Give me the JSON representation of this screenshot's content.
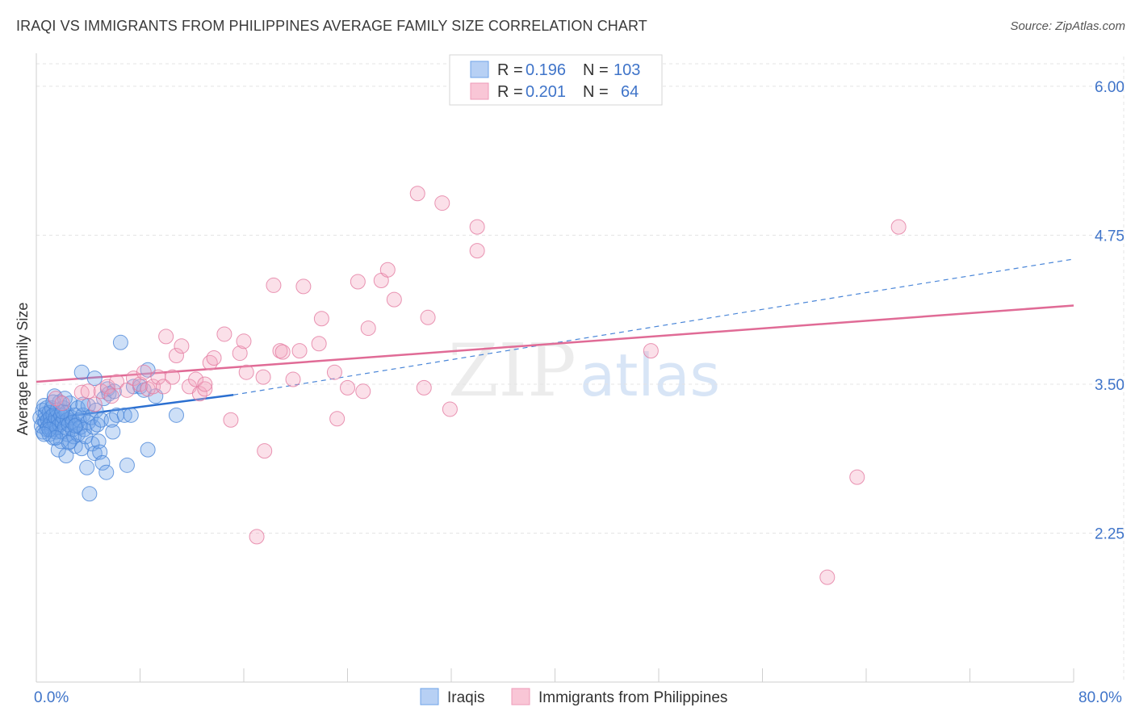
{
  "header": {
    "title": "IRAQI VS IMMIGRANTS FROM PHILIPPINES AVERAGE FAMILY SIZE CORRELATION CHART",
    "source": "Source: ZipAtlas.com"
  },
  "watermark": {
    "zip": "ZIP",
    "atlas": "atlas"
  },
  "chart_data": {
    "type": "scatter",
    "title": "IRAQI VS IMMIGRANTS FROM PHILIPPINES AVERAGE FAMILY SIZE CORRELATION CHART",
    "xlabel": "",
    "ylabel": "Average Family Size",
    "xlim": [
      0,
      80
    ],
    "ylim": [
      1.0,
      6.25
    ],
    "x_tick_labels": {
      "min": "0.0%",
      "max": "80.0%"
    },
    "y_ticks": [
      2.25,
      3.5,
      4.75,
      6.0
    ],
    "y_tick_labels": [
      "2.25",
      "3.50",
      "4.75",
      "6.00"
    ],
    "grid": true,
    "legend_position": "top-center",
    "series": [
      {
        "name": "Iraqis",
        "color": "#6fa3e8",
        "stroke": "#4a86d8",
        "R": "0.196",
        "N": "103",
        "trend": {
          "x0": 0.2,
          "y0": 3.2,
          "x1": 15.2,
          "y1": 3.41,
          "dash_to_x": 80,
          "dash_to_y": 4.55
        },
        "points": [
          [
            0.3,
            3.22
          ],
          [
            0.4,
            3.15
          ],
          [
            0.5,
            3.28
          ],
          [
            0.5,
            3.1
          ],
          [
            0.6,
            3.2
          ],
          [
            0.6,
            3.32
          ],
          [
            0.7,
            3.18
          ],
          [
            0.7,
            3.25
          ],
          [
            0.8,
            3.12
          ],
          [
            0.8,
            3.3
          ],
          [
            0.9,
            3.2
          ],
          [
            0.9,
            3.14
          ],
          [
            1.0,
            3.26
          ],
          [
            1.0,
            3.08
          ],
          [
            1.1,
            3.22
          ],
          [
            1.1,
            3.17
          ],
          [
            1.2,
            3.3
          ],
          [
            1.2,
            3.12
          ],
          [
            1.3,
            3.24
          ],
          [
            1.3,
            3.05
          ],
          [
            1.4,
            3.18
          ],
          [
            1.4,
            3.4
          ],
          [
            1.5,
            3.22
          ],
          [
            1.5,
            3.1
          ],
          [
            1.6,
            3.28
          ],
          [
            1.6,
            3.14
          ],
          [
            1.7,
            3.2
          ],
          [
            1.7,
            2.95
          ],
          [
            1.8,
            3.35
          ],
          [
            1.8,
            3.16
          ],
          [
            1.9,
            3.02
          ],
          [
            1.9,
            3.24
          ],
          [
            2.0,
            3.18
          ],
          [
            2.0,
            3.1
          ],
          [
            2.1,
            3.3
          ],
          [
            2.1,
            3.22
          ],
          [
            2.2,
            3.14
          ],
          [
            2.3,
            2.9
          ],
          [
            2.3,
            3.26
          ],
          [
            2.4,
            3.08
          ],
          [
            2.4,
            3.2
          ],
          [
            2.5,
            3.16
          ],
          [
            2.6,
            3.34
          ],
          [
            2.6,
            3.02
          ],
          [
            2.7,
            3.22
          ],
          [
            2.8,
            3.12
          ],
          [
            2.8,
            3.18
          ],
          [
            2.9,
            3.06
          ],
          [
            3.0,
            3.24
          ],
          [
            3.0,
            2.98
          ],
          [
            3.1,
            3.16
          ],
          [
            3.2,
            3.3
          ],
          [
            3.2,
            3.08
          ],
          [
            3.3,
            3.2
          ],
          [
            3.4,
            3.14
          ],
          [
            3.5,
            3.6
          ],
          [
            3.5,
            2.96
          ],
          [
            3.6,
            3.24
          ],
          [
            3.7,
            3.12
          ],
          [
            3.8,
            3.06
          ],
          [
            3.9,
            2.8
          ],
          [
            4.0,
            3.18
          ],
          [
            4.0,
            3.32
          ],
          [
            4.1,
            2.58
          ],
          [
            4.2,
            3.22
          ],
          [
            4.3,
            3.0
          ],
          [
            4.4,
            3.14
          ],
          [
            4.5,
            3.55
          ],
          [
            4.5,
            2.92
          ],
          [
            4.6,
            3.28
          ],
          [
            4.7,
            3.16
          ],
          [
            4.8,
            3.02
          ],
          [
            4.9,
            2.93
          ],
          [
            5.0,
            3.2
          ],
          [
            5.1,
            2.84
          ],
          [
            5.2,
            3.38
          ],
          [
            5.4,
            2.76
          ],
          [
            5.5,
            3.46
          ],
          [
            5.6,
            3.42
          ],
          [
            5.8,
            3.2
          ],
          [
            5.9,
            3.1
          ],
          [
            6.0,
            3.44
          ],
          [
            6.2,
            3.24
          ],
          [
            6.5,
            3.85
          ],
          [
            6.8,
            3.24
          ],
          [
            7.0,
            2.82
          ],
          [
            7.3,
            3.24
          ],
          [
            7.5,
            3.48
          ],
          [
            8.0,
            3.48
          ],
          [
            8.3,
            3.45
          ],
          [
            8.6,
            3.62
          ],
          [
            8.6,
            2.95
          ],
          [
            9.2,
            3.4
          ],
          [
            10.8,
            3.24
          ],
          [
            1.0,
            3.12
          ],
          [
            1.5,
            3.05
          ],
          [
            2.0,
            3.27
          ],
          [
            2.5,
            3.01
          ],
          [
            3.0,
            3.15
          ],
          [
            0.6,
            3.08
          ],
          [
            1.3,
            3.35
          ],
          [
            2.2,
            3.38
          ],
          [
            3.6,
            3.33
          ]
        ]
      },
      {
        "name": "Immigrants from Philippines",
        "color": "#f4a6c0",
        "stroke": "#e37ba0",
        "R": "0.201",
        "N": "64",
        "trend": {
          "x0": 0,
          "y0": 3.52,
          "x1": 80,
          "y1": 4.16
        },
        "points": [
          [
            1.5,
            3.38
          ],
          [
            2.0,
            3.34
          ],
          [
            3.5,
            3.43
          ],
          [
            4.0,
            3.44
          ],
          [
            4.5,
            3.33
          ],
          [
            5.0,
            3.44
          ],
          [
            5.5,
            3.48
          ],
          [
            5.8,
            3.4
          ],
          [
            6.2,
            3.52
          ],
          [
            7.0,
            3.45
          ],
          [
            7.5,
            3.55
          ],
          [
            8.0,
            3.5
          ],
          [
            8.3,
            3.6
          ],
          [
            8.6,
            3.46
          ],
          [
            9.0,
            3.48
          ],
          [
            9.4,
            3.56
          ],
          [
            9.8,
            3.48
          ],
          [
            10.0,
            3.9
          ],
          [
            10.5,
            3.56
          ],
          [
            10.8,
            3.74
          ],
          [
            11.2,
            3.82
          ],
          [
            11.8,
            3.48
          ],
          [
            12.3,
            3.54
          ],
          [
            12.6,
            3.42
          ],
          [
            13.0,
            3.46
          ],
          [
            13.4,
            3.68
          ],
          [
            13.7,
            3.72
          ],
          [
            14.5,
            3.92
          ],
          [
            15.0,
            3.2
          ],
          [
            15.7,
            3.76
          ],
          [
            16.0,
            3.86
          ],
          [
            17.0,
            2.22
          ],
          [
            17.5,
            3.56
          ],
          [
            17.6,
            2.94
          ],
          [
            18.3,
            4.33
          ],
          [
            18.8,
            3.78
          ],
          [
            19.0,
            3.77
          ],
          [
            19.8,
            3.54
          ],
          [
            20.3,
            3.78
          ],
          [
            20.6,
            4.32
          ],
          [
            21.8,
            3.84
          ],
          [
            22.0,
            4.05
          ],
          [
            23.0,
            3.6
          ],
          [
            23.2,
            3.21
          ],
          [
            24.0,
            3.47
          ],
          [
            24.8,
            4.36
          ],
          [
            25.2,
            3.44
          ],
          [
            25.6,
            3.97
          ],
          [
            26.6,
            4.37
          ],
          [
            27.1,
            4.46
          ],
          [
            27.6,
            4.21
          ],
          [
            29.4,
            5.1
          ],
          [
            29.9,
            3.47
          ],
          [
            30.2,
            4.06
          ],
          [
            31.3,
            5.02
          ],
          [
            31.9,
            3.29
          ],
          [
            34.0,
            4.82
          ],
          [
            34.0,
            4.62
          ],
          [
            47.4,
            3.78
          ],
          [
            61.0,
            1.88
          ],
          [
            63.3,
            2.72
          ],
          [
            66.5,
            4.82
          ],
          [
            16.2,
            3.6
          ],
          [
            13.0,
            3.5
          ]
        ]
      }
    ]
  },
  "legend": {
    "rows": [
      {
        "r_label": "R =",
        "r_value": "0.196",
        "n_label": "N =",
        "n_value": "103"
      },
      {
        "r_label": "R =",
        "r_value": "0.201",
        "n_label": "N =",
        "n_value": "64"
      }
    ]
  },
  "bottom_legend": {
    "items": [
      "Iraqis",
      "Immigrants from Philippines"
    ]
  }
}
